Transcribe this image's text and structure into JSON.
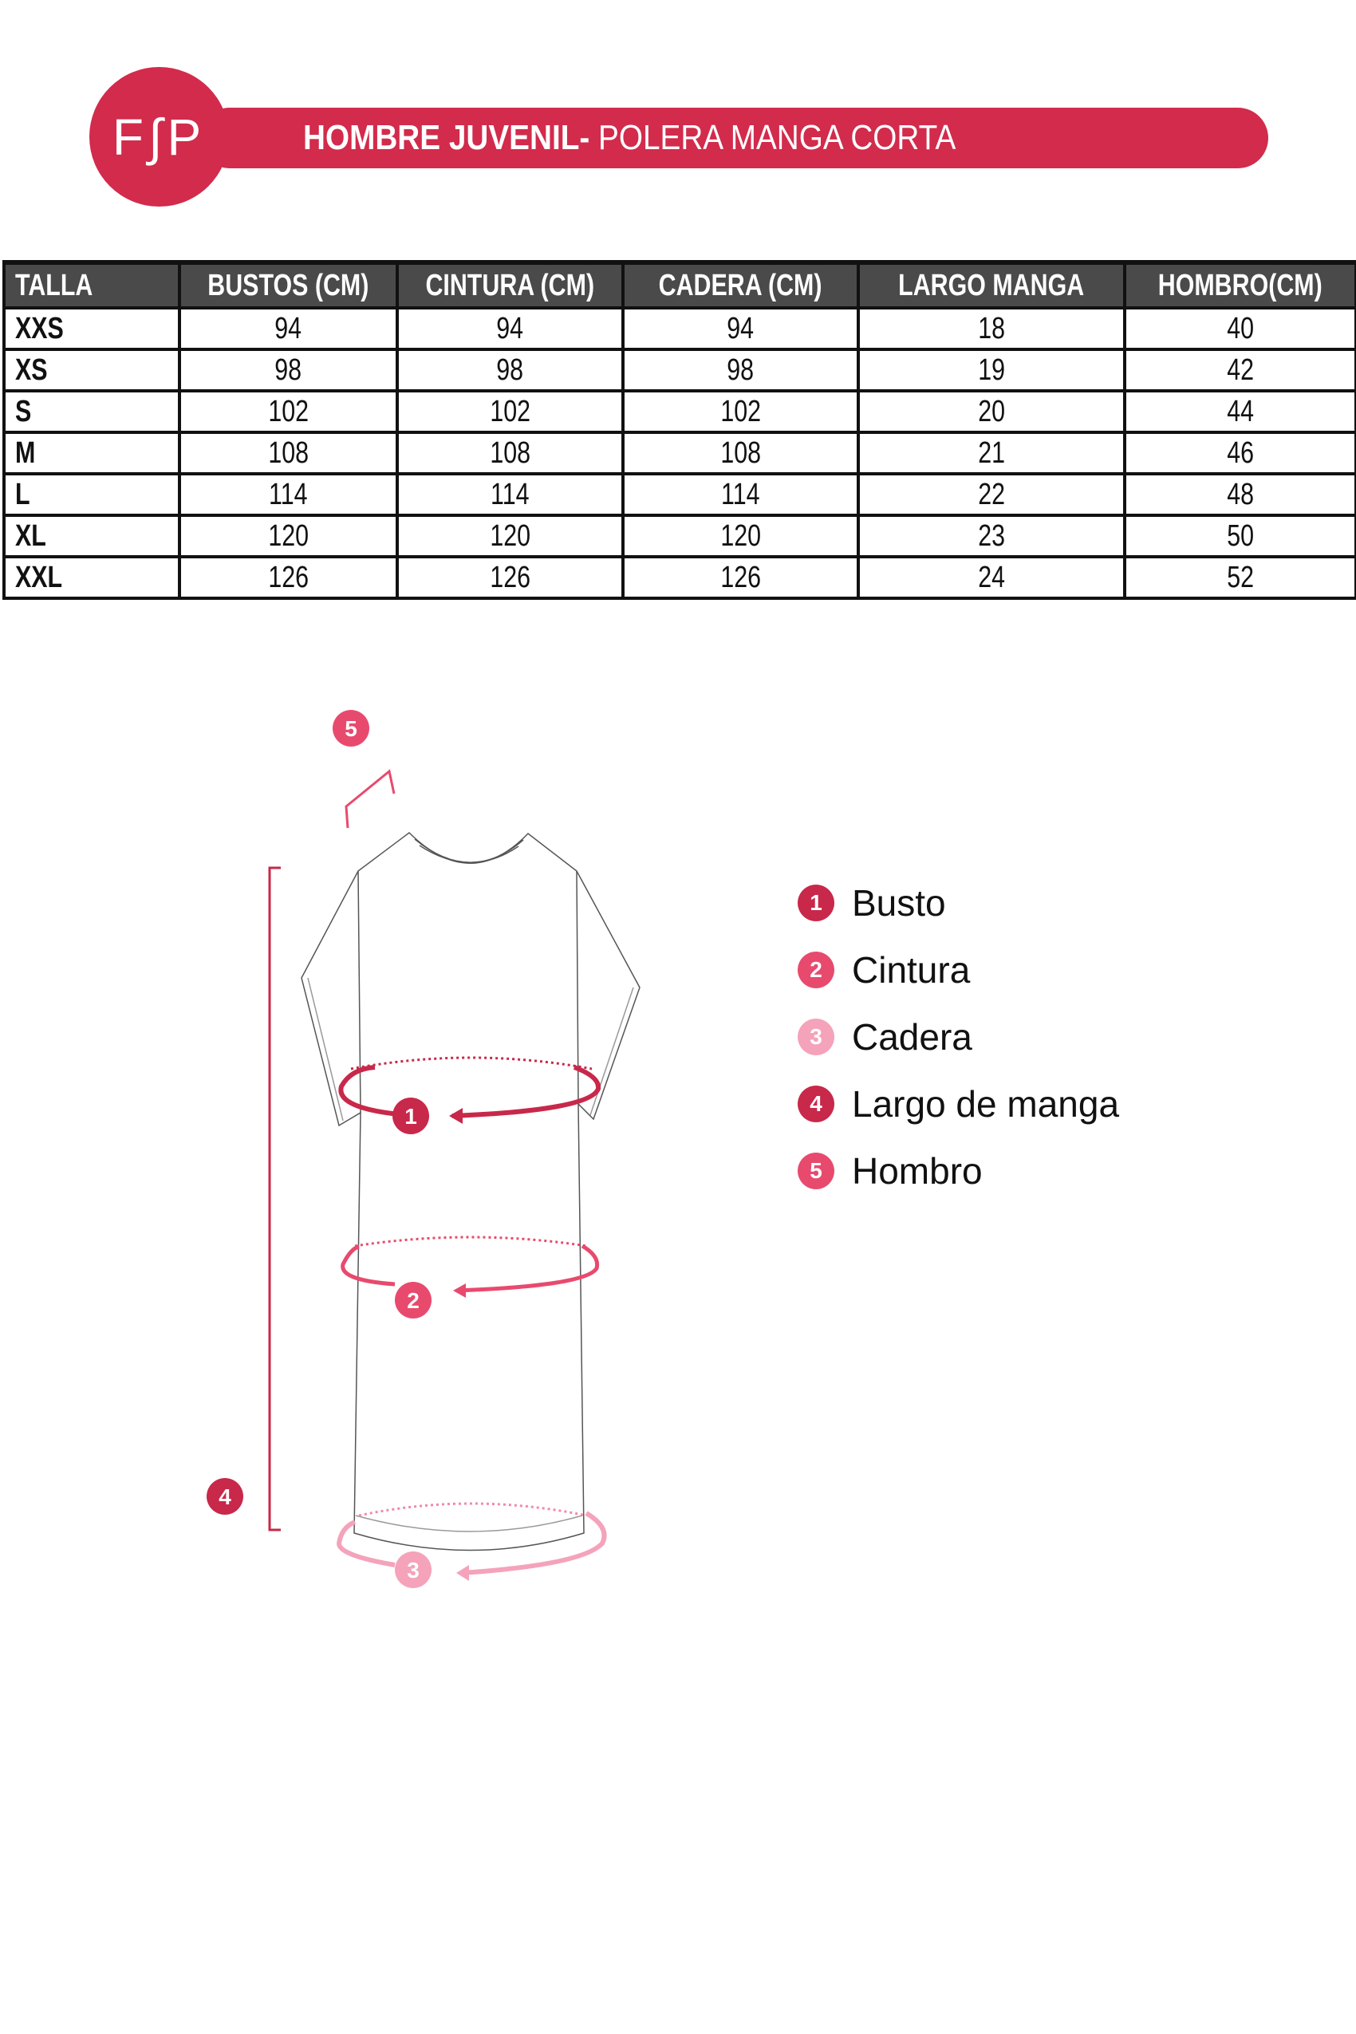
{
  "header": {
    "logo_text": "F∫P",
    "title_bold": "HOMBRE JUVENIL-",
    "title_regular": " POLERA MANGA CORTA",
    "brand_color": "#d22b4c"
  },
  "size_table": {
    "columns": [
      "TALLA",
      "BUSTOS (CM)",
      "CINTURA (CM)",
      "CADERA (CM)",
      "LARGO MANGA",
      "HOMBRO(CM)"
    ],
    "rows": [
      [
        "XXS",
        "94",
        "94",
        "94",
        "18",
        "40"
      ],
      [
        "XS",
        "98",
        "98",
        "98",
        "19",
        "42"
      ],
      [
        "S",
        "102",
        "102",
        "102",
        "20",
        "44"
      ],
      [
        "M",
        "108",
        "108",
        "108",
        "21",
        "46"
      ],
      [
        "L",
        "114",
        "114",
        "114",
        "22",
        "48"
      ],
      [
        "XL",
        "120",
        "120",
        "120",
        "23",
        "50"
      ],
      [
        "XXL",
        "126",
        "126",
        "126",
        "24",
        "52"
      ]
    ]
  },
  "legend": [
    {
      "number": "1",
      "label": "Busto",
      "color": "#c8284a"
    },
    {
      "number": "2",
      "label": "Cintura",
      "color": "#e84a6e"
    },
    {
      "number": "3",
      "label": "Cadera",
      "color": "#f4a3bb"
    },
    {
      "number": "4",
      "label": "Largo de manga",
      "color": "#c8284a"
    },
    {
      "number": "5",
      "label": "Hombro",
      "color": "#e84a6e"
    }
  ]
}
